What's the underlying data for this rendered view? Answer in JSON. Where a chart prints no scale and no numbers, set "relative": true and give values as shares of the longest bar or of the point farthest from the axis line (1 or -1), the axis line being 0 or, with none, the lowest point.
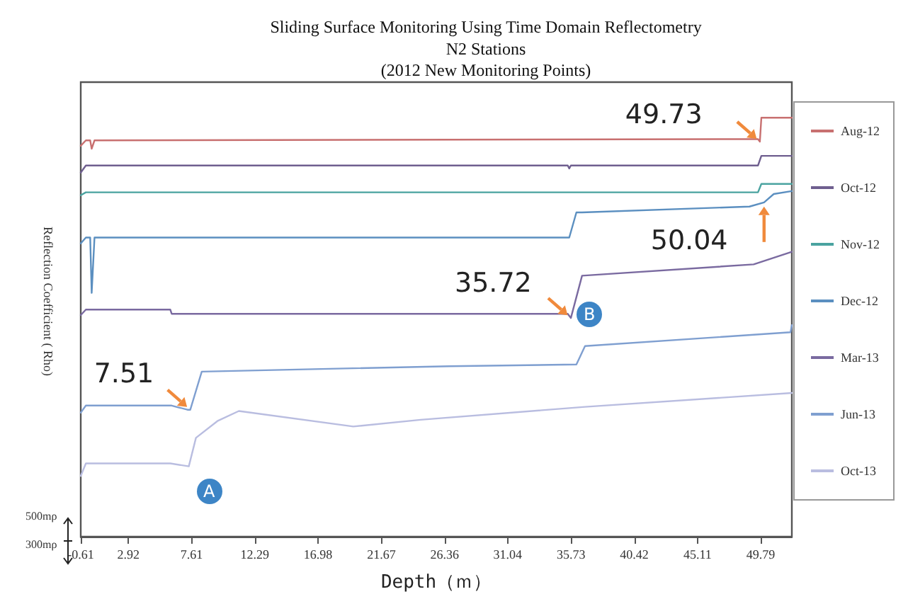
{
  "chart_data": {
    "type": "line",
    "title": "Sliding Surface Monitoring Using Time Domain Reflectometry",
    "subtitle": "N2 Stations\n(2012 New Monitoring Points)",
    "xlabel": "Depth（ｍ）",
    "ylabel": "Reflection Coefficient ( Rho)",
    "relative": true,
    "xlim": [
      -0.61,
      52.1
    ],
    "xticks": [
      -0.61,
      2.92,
      7.61,
      12.29,
      16.98,
      21.67,
      26.36,
      31.04,
      35.73,
      40.42,
      45.11,
      49.79
    ],
    "series": [
      {
        "name": "Aug-12",
        "color": "#c87070",
        "x": [
          -0.61,
          -0.23,
          0.09,
          0.2,
          0.41,
          49.59,
          49.73,
          49.84,
          52.1
        ],
        "values": [
          0.933,
          0.946,
          0.946,
          0.926,
          0.946,
          0.949,
          0.943,
          1.0,
          1.0
        ]
      },
      {
        "name": "Oct-12",
        "color": "#6f5f8f",
        "x": [
          -0.61,
          -0.23,
          35.49,
          35.6,
          35.72,
          49.59,
          49.84,
          52.1
        ],
        "values": [
          0.869,
          0.886,
          0.886,
          0.879,
          0.886,
          0.886,
          0.909,
          0.909
        ]
      },
      {
        "name": "Nov-12",
        "color": "#4aa3a0",
        "x": [
          -0.61,
          -0.23,
          49.59,
          49.84,
          52.1
        ],
        "values": [
          0.815,
          0.822,
          0.822,
          0.842,
          0.842
        ]
      },
      {
        "name": "Dec-12",
        "color": "#5b8fc0",
        "x": [
          -0.61,
          -0.23,
          0.09,
          0.2,
          0.41,
          35.6,
          36.13,
          36.55,
          48.96,
          50.04,
          50.76,
          52.1
        ],
        "values": [
          0.7,
          0.714,
          0.714,
          0.582,
          0.714,
          0.714,
          0.774,
          0.774,
          0.788,
          0.798,
          0.818,
          0.825
        ]
      },
      {
        "name": "Mar-13",
        "color": "#7a6aa0",
        "x": [
          -0.61,
          -0.23,
          6.03,
          6.13,
          35.49,
          35.72,
          36.55,
          49.27,
          52.1
        ],
        "values": [
          0.529,
          0.542,
          0.542,
          0.532,
          0.532,
          0.522,
          0.623,
          0.65,
          0.68
        ]
      },
      {
        "name": "Jun-13",
        "color": "#7f9fd0",
        "x": [
          -0.61,
          -0.23,
          6.13,
          7.3,
          7.51,
          8.36,
          26.7,
          36.13,
          36.77,
          52.0,
          52.1
        ],
        "values": [
          0.296,
          0.313,
          0.313,
          0.303,
          0.303,
          0.394,
          0.407,
          0.411,
          0.455,
          0.488,
          0.505
        ]
      },
      {
        "name": "Oct-13",
        "color": "#b9bde0",
        "x": [
          -0.61,
          -0.23,
          6.03,
          7.4,
          7.93,
          9.52,
          11.11,
          19.59,
          24.58,
          36.77,
          52.1
        ],
        "values": [
          0.145,
          0.175,
          0.175,
          0.168,
          0.236,
          0.276,
          0.3,
          0.263,
          0.279,
          0.31,
          0.343
        ]
      }
    ],
    "annotations": [
      {
        "text": "7.51",
        "x": 7.51,
        "y": 0.303
      },
      {
        "text": "35.72",
        "x": 35.72,
        "y": 0.522
      },
      {
        "text": "49.73",
        "x": 49.73,
        "y": 0.943
      },
      {
        "text": "50.04",
        "x": 50.04,
        "y": 0.798
      },
      {
        "text": "A",
        "x": 8.9,
        "y": 0.108
      },
      {
        "text": "B",
        "x": 37.1,
        "y": 0.532
      },
      "500mρ",
      "300mρ"
    ],
    "legend": "right",
    "marker": "none",
    "line_style": "solid",
    "grid": false
  }
}
